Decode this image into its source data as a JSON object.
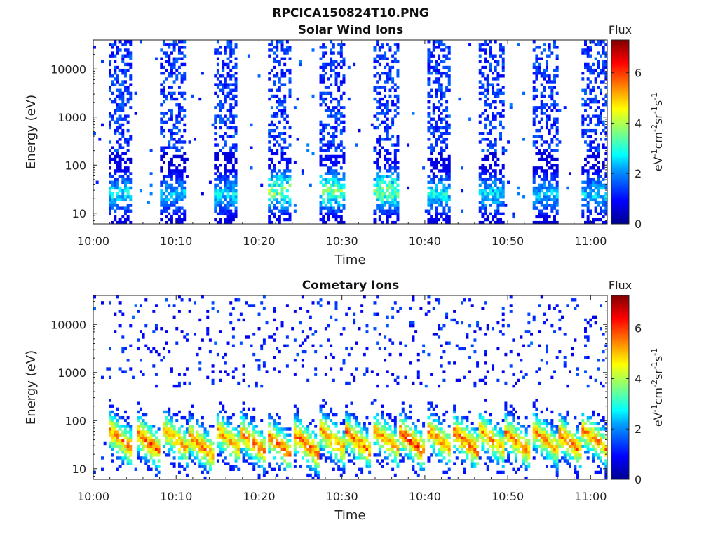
{
  "figure": {
    "title": "RPCICA150824T10.PNG"
  },
  "colormap": {
    "name": "jet",
    "stops": [
      "#00008f",
      "#0000ff",
      "#00a0ff",
      "#00ffff",
      "#80ff80",
      "#ffff00",
      "#ff8000",
      "#ff0000",
      "#800000"
    ]
  },
  "chart_data": [
    {
      "type": "heatmap",
      "title": "Solar Wind Ions",
      "xlabel": "Time",
      "ylabel": "Energy (eV)",
      "x_ticks": [
        "10:00",
        "10:10",
        "10:20",
        "10:30",
        "10:40",
        "10:50",
        "11:00"
      ],
      "x_range_minutes": [
        0,
        62
      ],
      "y_scale": "log",
      "y_ticks": [
        "10",
        "100",
        "1000",
        "10000"
      ],
      "y_range": [
        6,
        40000
      ],
      "colorbar": {
        "title": "Flux",
        "label": "eV<sup>-1</sup>cm<sup>-2</sup>sr<sup>-1</sup>s<sup>-1</sup>",
        "ticks": [
          "0",
          "2",
          "4",
          "6"
        ],
        "range": [
          0,
          7.3
        ]
      },
      "bursts": [
        {
          "start_min": 1.8,
          "end_min": 4.8,
          "peak_flux": 3.4,
          "low_energy_ev": 25,
          "extends_to_top": true
        },
        {
          "start_min": 8.0,
          "end_min": 11.2,
          "peak_flux": 3.0,
          "low_energy_ev": 25,
          "extends_to_top": true
        },
        {
          "start_min": 14.5,
          "end_min": 17.5,
          "peak_flux": 3.2,
          "low_energy_ev": 25,
          "extends_to_top": true
        },
        {
          "start_min": 21.0,
          "end_min": 24.0,
          "peak_flux": 4.6,
          "low_energy_ev": 30,
          "extends_to_top": true
        },
        {
          "start_min": 27.3,
          "end_min": 30.3,
          "peak_flux": 4.5,
          "low_energy_ev": 30,
          "extends_to_top": true
        },
        {
          "start_min": 33.8,
          "end_min": 36.8,
          "peak_flux": 4.6,
          "low_energy_ev": 30,
          "extends_to_top": true
        },
        {
          "start_min": 40.2,
          "end_min": 43.2,
          "peak_flux": 3.4,
          "low_energy_ev": 25,
          "extends_to_top": true
        },
        {
          "start_min": 46.5,
          "end_min": 49.5,
          "peak_flux": 3.3,
          "low_energy_ev": 25,
          "extends_to_top": true
        },
        {
          "start_min": 53.0,
          "end_min": 56.0,
          "peak_flux": 3.0,
          "low_energy_ev": 25,
          "extends_to_top": true
        },
        {
          "start_min": 59.0,
          "end_min": 62.0,
          "peak_flux": 3.2,
          "low_energy_ev": 25,
          "extends_to_top": true
        }
      ]
    },
    {
      "type": "heatmap",
      "title": "Cometary Ions",
      "xlabel": "Time",
      "ylabel": "Energy (eV)",
      "x_ticks": [
        "10:00",
        "10:10",
        "10:20",
        "10:30",
        "10:40",
        "10:50",
        "11:00"
      ],
      "x_range_minutes": [
        0,
        62
      ],
      "y_scale": "log",
      "y_ticks": [
        "10",
        "100",
        "1000",
        "10000"
      ],
      "y_range": [
        6,
        40000
      ],
      "colorbar": {
        "title": "Flux",
        "label": "eV<sup>-1</sup>cm<sup>-2</sup>sr<sup>-1</sup>s<sup>-1</sup>",
        "ticks": [
          "0",
          "2",
          "4",
          "6"
        ],
        "range": [
          0,
          7.3
        ]
      },
      "bursts": [
        {
          "start_min": 1.8,
          "end_min": 4.8,
          "peak_flux": 6.3,
          "peak_energy_ev": 40
        },
        {
          "start_min": 5.2,
          "end_min": 8.2,
          "peak_flux": 6.6,
          "peak_energy_ev": 35
        },
        {
          "start_min": 8.5,
          "end_min": 11.5,
          "peak_flux": 6.0,
          "peak_energy_ev": 40
        },
        {
          "start_min": 11.5,
          "end_min": 14.5,
          "peak_flux": 6.4,
          "peak_energy_ev": 30
        },
        {
          "start_min": 14.8,
          "end_min": 17.8,
          "peak_flux": 6.0,
          "peak_energy_ev": 40
        },
        {
          "start_min": 17.8,
          "end_min": 20.8,
          "peak_flux": 6.3,
          "peak_energy_ev": 35
        },
        {
          "start_min": 21.0,
          "end_min": 24.0,
          "peak_flux": 6.5,
          "peak_energy_ev": 30
        },
        {
          "start_min": 24.3,
          "end_min": 27.3,
          "peak_flux": 6.6,
          "peak_energy_ev": 30
        },
        {
          "start_min": 27.3,
          "end_min": 30.3,
          "peak_flux": 6.2,
          "peak_energy_ev": 40
        },
        {
          "start_min": 30.5,
          "end_min": 33.5,
          "peak_flux": 6.4,
          "peak_energy_ev": 35
        },
        {
          "start_min": 33.8,
          "end_min": 36.8,
          "peak_flux": 6.1,
          "peak_energy_ev": 40
        },
        {
          "start_min": 37.0,
          "end_min": 40.0,
          "peak_flux": 6.8,
          "peak_energy_ev": 35
        },
        {
          "start_min": 40.2,
          "end_min": 43.2,
          "peak_flux": 6.2,
          "peak_energy_ev": 40
        },
        {
          "start_min": 43.5,
          "end_min": 46.5,
          "peak_flux": 6.5,
          "peak_energy_ev": 35
        },
        {
          "start_min": 46.5,
          "end_min": 49.5,
          "peak_flux": 6.0,
          "peak_energy_ev": 40
        },
        {
          "start_min": 49.7,
          "end_min": 52.7,
          "peak_flux": 6.2,
          "peak_energy_ev": 35
        },
        {
          "start_min": 53.0,
          "end_min": 56.0,
          "peak_flux": 6.0,
          "peak_energy_ev": 40
        },
        {
          "start_min": 56.0,
          "end_min": 59.0,
          "peak_flux": 6.4,
          "peak_energy_ev": 35
        },
        {
          "start_min": 59.0,
          "end_min": 62.0,
          "peak_flux": 6.2,
          "peak_energy_ev": 40
        }
      ]
    }
  ]
}
